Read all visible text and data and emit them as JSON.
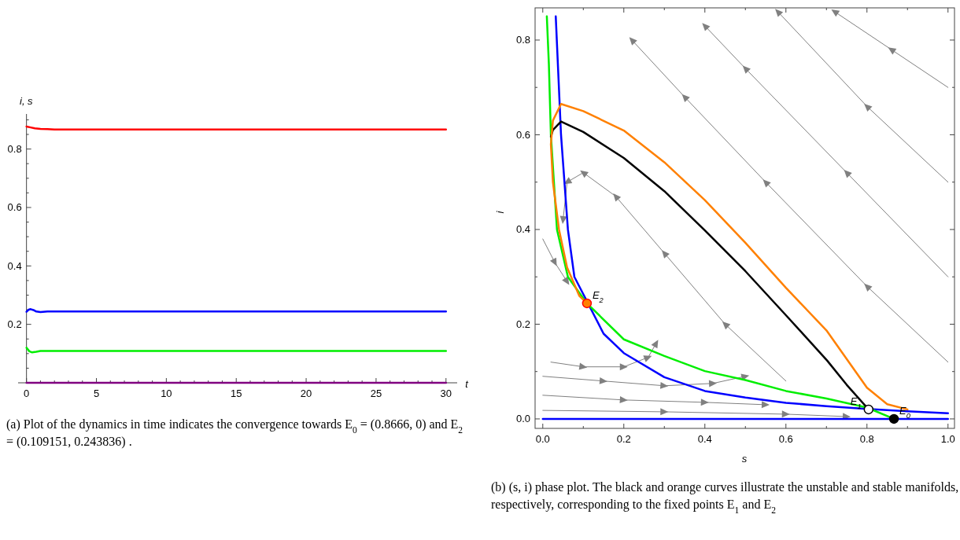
{
  "chart_data": [
    {
      "type": "line",
      "xlabel": "t",
      "ylabel": "i, s",
      "xlim": [
        -0.6,
        30.8
      ],
      "ylim": [
        0,
        0.92
      ],
      "xticks": [
        0,
        {
          "value": 1,
          "label": null
        },
        {
          "value": 2,
          "label": null
        },
        {
          "value": 3,
          "label": null
        },
        {
          "value": 4,
          "label": null
        },
        5,
        {
          "value": 6,
          "label": null
        },
        {
          "value": 7,
          "label": null
        },
        {
          "value": 8,
          "label": null
        },
        {
          "value": 9,
          "label": null
        },
        10,
        {
          "value": 11,
          "label": null
        },
        {
          "value": 12,
          "label": null
        },
        {
          "value": 13,
          "label": null
        },
        {
          "value": 14,
          "label": null
        },
        15,
        {
          "value": 16,
          "label": null
        },
        {
          "value": 17,
          "label": null
        },
        {
          "value": 18,
          "label": null
        },
        {
          "value": 19,
          "label": null
        },
        20,
        {
          "value": 21,
          "label": null
        },
        {
          "value": 22,
          "label": null
        },
        {
          "value": 23,
          "label": null
        },
        {
          "value": 24,
          "label": null
        },
        25,
        {
          "value": 26,
          "label": null
        },
        {
          "value": 27,
          "label": null
        },
        {
          "value": 28,
          "label": null
        },
        {
          "value": 29,
          "label": null
        },
        30
      ],
      "yticks": [
        {
          "value": 0.05,
          "label": null
        },
        {
          "value": 0.1,
          "label": null
        },
        {
          "value": 0.15,
          "label": null
        },
        0.2,
        {
          "value": 0.25,
          "label": null
        },
        {
          "value": 0.3,
          "label": null
        },
        {
          "value": 0.35,
          "label": null
        },
        0.4,
        {
          "value": 0.45,
          "label": null
        },
        {
          "value": 0.5,
          "label": null
        },
        {
          "value": 0.55,
          "label": null
        },
        0.6,
        {
          "value": 0.65,
          "label": null
        },
        {
          "value": 0.7,
          "label": null
        },
        {
          "value": 0.75,
          "label": null
        },
        0.8,
        {
          "value": 0.85,
          "label": null
        },
        {
          "value": 0.9,
          "label": null
        }
      ],
      "series": [
        {
          "color": "#ff0000",
          "x": [
            0,
            0.3,
            0.6,
            1,
            1.5,
            2,
            3,
            30
          ],
          "values": [
            0.877,
            0.874,
            0.871,
            0.869,
            0.868,
            0.867,
            0.867,
            0.867
          ]
        },
        {
          "color": "#0000ff",
          "x": [
            0,
            0.15,
            0.3,
            0.5,
            0.7,
            1,
            1.5,
            30
          ],
          "values": [
            0.243,
            0.25,
            0.252,
            0.249,
            0.244,
            0.242,
            0.244,
            0.244
          ]
        },
        {
          "color": "#00ee00",
          "x": [
            0,
            0.2,
            0.4,
            0.7,
            1,
            1.5,
            30
          ],
          "values": [
            0.12,
            0.108,
            0.104,
            0.106,
            0.109,
            0.109,
            0.109
          ]
        },
        {
          "color": "#800080",
          "x": [
            0,
            30
          ],
          "values": [
            0,
            0
          ]
        }
      ],
      "annotations": [
        "(a) Plot of the dynamics in time indicates the convergence towards E$_{0}$ = (0.8666, 0) and E$_{2}$ = (0.109151, 0.243836) ."
      ]
    },
    {
      "type": "line",
      "xlabel": "s",
      "ylabel": "i",
      "xlim": [
        -0.019,
        1.016
      ],
      "ylim": [
        -0.02,
        0.868
      ],
      "xticks": [
        {
          "value": 0,
          "label": "0.0"
        },
        {
          "value": 0.1,
          "label": null
        },
        0.2,
        {
          "value": 0.3,
          "label": null
        },
        0.4,
        {
          "value": 0.5,
          "label": null
        },
        0.6,
        {
          "value": 0.7,
          "label": null
        },
        0.8,
        {
          "value": 0.9,
          "label": null
        },
        {
          "value": 1,
          "label": "1.0"
        }
      ],
      "yticks": [
        {
          "value": 0,
          "label": "0.0"
        },
        {
          "value": 0.1,
          "label": null
        },
        0.2,
        {
          "value": 0.3,
          "label": null
        },
        0.4,
        {
          "value": 0.5,
          "label": null
        },
        0.6,
        {
          "value": 0.7,
          "label": null
        },
        0.8
      ],
      "series": [
        {
          "color": "#808080",
          "marker": "triangle",
          "x": [
            1.0,
            0.86,
            0.72
          ],
          "values": [
            0.7,
            0.78,
            0.86
          ]
        },
        {
          "color": "#808080",
          "marker": "triangle",
          "x": [
            1.0,
            0.8,
            0.58
          ],
          "values": [
            0.5,
            0.66,
            0.86
          ]
        },
        {
          "color": "#808080",
          "marker": "triangle",
          "x": [
            1.0,
            0.75,
            0.5,
            0.4
          ],
          "values": [
            0.3,
            0.52,
            0.74,
            0.83
          ]
        },
        {
          "color": "#808080",
          "marker": "triangle",
          "x": [
            1.0,
            0.8,
            0.55,
            0.35,
            0.22
          ],
          "values": [
            0.12,
            0.28,
            0.5,
            0.68,
            0.8
          ]
        },
        {
          "color": "#808080",
          "marker": "triangle",
          "x": [
            0.6,
            0.45,
            0.3,
            0.18,
            0.1,
            0.06,
            0.05
          ],
          "values": [
            0.08,
            0.2,
            0.35,
            0.47,
            0.52,
            0.5,
            0.42
          ]
        },
        {
          "color": "#808080",
          "marker": "triangle",
          "x": [
            0.02,
            0.1,
            0.2,
            0.26,
            0.28
          ],
          "values": [
            0.12,
            0.11,
            0.11,
            0.13,
            0.16
          ]
        },
        {
          "color": "#808080",
          "marker": "triangle",
          "x": [
            0.0,
            0.03,
            0.06
          ],
          "values": [
            0.38,
            0.33,
            0.29
          ]
        },
        {
          "color": "#808080",
          "marker": "triangle",
          "x": [
            0.0,
            0.15,
            0.3,
            0.42,
            0.5
          ],
          "values": [
            0.09,
            0.08,
            0.07,
            0.075,
            0.09
          ]
        },
        {
          "color": "#808080",
          "marker": "triangle",
          "x": [
            0.0,
            0.2,
            0.4,
            0.55
          ],
          "values": [
            0.05,
            0.04,
            0.035,
            0.03
          ]
        },
        {
          "color": "#808080",
          "marker": "triangle",
          "x": [
            0.0,
            0.3,
            0.6,
            0.75
          ],
          "values": [
            0.018,
            0.015,
            0.01,
            0.005
          ]
        },
        {
          "color": "#0000ff",
          "x": [
            0,
            1
          ],
          "values": [
            0,
            0
          ]
        },
        {
          "color": "#0000ff",
          "x": [
            0.032,
            0.045,
            0.062,
            0.078,
            0.15,
            0.2,
            0.3,
            0.4,
            0.5,
            0.6,
            0.7,
            0.8,
            0.9,
            1.0
          ],
          "values": [
            0.85,
            0.6,
            0.4,
            0.3,
            0.18,
            0.139,
            0.088,
            0.059,
            0.045,
            0.034,
            0.027,
            0.021,
            0.016,
            0.012
          ]
        },
        {
          "color": "#00ee00",
          "x": [
            0.01,
            0.015,
            0.02,
            0.035,
            0.062,
            0.109,
            0.2,
            0.3,
            0.4,
            0.5,
            0.6,
            0.7,
            0.8,
            0.8666
          ],
          "values": [
            0.85,
            0.75,
            0.6,
            0.4,
            0.3,
            0.244,
            0.168,
            0.133,
            0.101,
            0.082,
            0.059,
            0.043,
            0.024,
            0
          ]
        },
        {
          "color": "#000000",
          "x": [
            0.804,
            0.75,
            0.702,
            0.6,
            0.5,
            0.4,
            0.3,
            0.2,
            0.1,
            0.045,
            0.025,
            0.02
          ],
          "values": [
            0.02,
            0.072,
            0.123,
            0.219,
            0.312,
            0.398,
            0.481,
            0.551,
            0.606,
            0.628,
            0.61,
            0.596
          ]
        },
        {
          "color": "#ff8000",
          "x": [
            0.9,
            0.85,
            0.8,
            0.7,
            0.6,
            0.5,
            0.4,
            0.3,
            0.2,
            0.1,
            0.045,
            0.025,
            0.02,
            0.025,
            0.04,
            0.06,
            0.09,
            0.109
          ],
          "values": [
            0.02,
            0.031,
            0.066,
            0.187,
            0.277,
            0.372,
            0.462,
            0.542,
            0.609,
            0.65,
            0.665,
            0.63,
            0.58,
            0.5,
            0.4,
            0.32,
            0.26,
            0.244
          ]
        },
        {
          "type": "scatter",
          "color": "#000000",
          "x": [
            0.8666
          ],
          "values": [
            0
          ]
        },
        {
          "type": "scatter",
          "color": "#ffffff",
          "x": [
            0.804
          ],
          "values": [
            0.02
          ]
        },
        {
          "type": "scatter",
          "color": "#ff8000",
          "x": [
            0.109
          ],
          "values": [
            0.244
          ]
        }
      ],
      "annotations": [
        {
          "text": "E$_{0}$",
          "x": 0.8666,
          "y": 0
        },
        {
          "text": "E$_{1}$",
          "x": 0.804,
          "y": 0.02
        },
        {
          "text": "E$_{2}$",
          "x": 0.109,
          "y": 0.244
        },
        "(b) (s, i) phase plot. The black and orange curves illustrate the unstable and stable manifolds, respectively, corresponding to the fixed points E$_{1}$ and E$_{2}$"
      ]
    }
  ]
}
